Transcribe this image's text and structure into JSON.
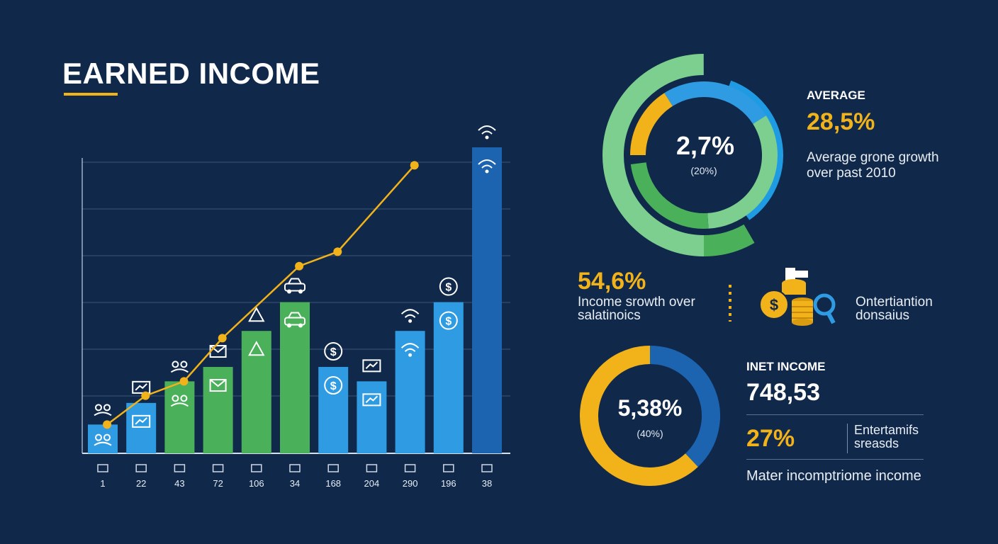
{
  "title": "EARNED INCOME",
  "colors": {
    "background": "#10284a",
    "accent_yellow": "#f2b21a",
    "green_light": "#7ccf8e",
    "green": "#4bb05a",
    "blue_light": "#2f9be3",
    "blue_dark": "#1c63b0"
  },
  "chart_data": {
    "type": "bar",
    "categories": [
      "1",
      "22",
      "43",
      "72",
      "106",
      "34",
      "168",
      "204",
      "290",
      "196",
      "38"
    ],
    "values": [
      4,
      7,
      10,
      12,
      17,
      21,
      12,
      10,
      17,
      21,
      42.5
    ],
    "bar_colors": [
      "#2f9be3",
      "#2f9be3",
      "#4bb05a",
      "#4bb05a",
      "#4bb05a",
      "#4bb05a",
      "#2f9be3",
      "#2f9be3",
      "#2f9be3",
      "#2f9be3",
      "#1c63b0"
    ],
    "bar_icons": [
      "people-icon",
      "chart-screen-icon",
      "people-icon",
      "mail-icon",
      "scale-icon",
      "car-icon",
      "dollar-icon",
      "document-icon",
      "wifi-icon",
      "dollar-icon",
      "wifi-icon"
    ],
    "tick_icons": [
      "car-icon",
      "barbell-icon",
      "car-icon",
      "chart-icon",
      "person-icon",
      "person-icon",
      "person-icon",
      "gear-icon",
      "house-icon",
      "bus-icon",
      "car-icon"
    ],
    "line": {
      "values": [
        4,
        8,
        10,
        16,
        26,
        28,
        40
      ],
      "category_index": [
        0.5,
        1.5,
        2.5,
        3.5,
        5.5,
        6.5,
        8.5
      ]
    },
    "ylim": [
      0,
      42.5
    ],
    "grid": true,
    "xlabel": "",
    "ylabel": ""
  },
  "top_donut": {
    "center_value": "2,7%",
    "center_sub": "(20%)",
    "outer_segments": [
      {
        "color": "#7ccf8e",
        "fraction": 0.5
      },
      {
        "color": "#1f9be3",
        "fraction": 0.22
      }
    ],
    "inner_segments": [
      {
        "color": "#f2b21a",
        "fraction": 0.16
      },
      {
        "color": "#2f9be3",
        "fraction": 0.25
      },
      {
        "color": "#7ccf8e",
        "fraction": 0.33
      },
      {
        "color": "#4bb05a",
        "fraction": 0.24
      }
    ]
  },
  "average": {
    "label": "AVERAGE",
    "value": "28,5%",
    "desc_line1": "Average grone growth",
    "desc_line2": "over past 2010"
  },
  "growth": {
    "value": "54,6%",
    "desc_line1": "Income srowth over",
    "desc_line2": "salatinoics"
  },
  "coins": {
    "icon": "coins-magnifier-icon",
    "label_line1": "Ontertiantion",
    "label_line2": "donsaius"
  },
  "bottom_donut": {
    "center_value": "5,38%",
    "center_sub": "(40%)",
    "segments": [
      {
        "color": "#1c63b0",
        "fraction": 0.38
      },
      {
        "color": "#f2b21a",
        "fraction": 0.62
      }
    ]
  },
  "net": {
    "label": "INET INCOME",
    "value": "748,53",
    "percent": "27%",
    "side_line1": "Entertamifs",
    "side_line2": "sreasds",
    "footer": "Mater incomptriome income"
  }
}
